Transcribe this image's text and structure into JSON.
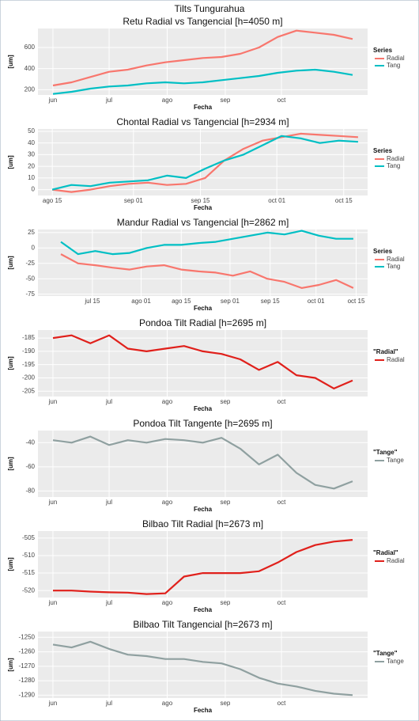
{
  "title": "Tilts Tungurahua",
  "chart_data": [
    {
      "type": "line",
      "title": "Retu Radial vs Tangencial [h=4050 m]",
      "xlabel": "Fecha",
      "ylabel": "[um]",
      "legend_title": "Series",
      "x": [
        0,
        10,
        20,
        30,
        40,
        50,
        60,
        70,
        80,
        90,
        100,
        110,
        120,
        130,
        140,
        150,
        160
      ],
      "xlim": [
        -8,
        168
      ],
      "xticks": [
        {
          "value": 0,
          "label": "jun"
        },
        {
          "value": 30,
          "label": "jul"
        },
        {
          "value": 61,
          "label": "ago"
        },
        {
          "value": 92,
          "label": "sep"
        },
        {
          "value": 122,
          "label": "oct"
        }
      ],
      "ylim": [
        150,
        780
      ],
      "yticks": [
        200,
        400,
        600
      ],
      "grid": true,
      "series": [
        {
          "name": "Radial",
          "color": "#f8766d",
          "values": [
            240,
            270,
            320,
            370,
            390,
            430,
            460,
            480,
            500,
            510,
            540,
            600,
            700,
            760,
            740,
            720,
            680
          ]
        },
        {
          "name": "Tang",
          "color": "#00bfc4",
          "values": [
            160,
            180,
            210,
            230,
            240,
            260,
            270,
            260,
            270,
            290,
            310,
            330,
            360,
            380,
            390,
            370,
            340
          ]
        }
      ]
    },
    {
      "type": "line",
      "title": "Chontal Radial vs Tangencial [h=2934 m]",
      "xlabel": "Fecha",
      "ylabel": "[um]",
      "legend_title": "Series",
      "x": [
        0,
        4,
        8,
        12,
        16,
        20,
        24,
        28,
        32,
        36,
        40,
        44,
        48,
        52,
        56,
        60,
        64
      ],
      "xlim": [
        -3,
        66
      ],
      "xticks": [
        {
          "value": 0,
          "label": "ago 15"
        },
        {
          "value": 17,
          "label": "sep 01"
        },
        {
          "value": 31,
          "label": "sep 15"
        },
        {
          "value": 47,
          "label": "oct 01"
        },
        {
          "value": 61,
          "label": "oct 15"
        }
      ],
      "ylim": [
        -5,
        52
      ],
      "yticks": [
        0,
        10,
        20,
        30,
        40,
        50
      ],
      "grid": true,
      "series": [
        {
          "name": "Radial",
          "color": "#f8766d",
          "values": [
            0,
            -2,
            0,
            3,
            5,
            6,
            4,
            5,
            10,
            25,
            35,
            42,
            45,
            48,
            47,
            46,
            45
          ]
        },
        {
          "name": "Tang",
          "color": "#00bfc4",
          "values": [
            0,
            4,
            3,
            6,
            7,
            8,
            12,
            10,
            18,
            25,
            30,
            38,
            46,
            44,
            40,
            42,
            41
          ]
        }
      ]
    },
    {
      "type": "line",
      "title": "Mandur Radial vs Tangencial [h=2862 m]",
      "xlabel": "Fecha",
      "ylabel": "[um]",
      "legend_title": "Series",
      "x": [
        3,
        9,
        15,
        21,
        27,
        33,
        39,
        45,
        51,
        57,
        63,
        69,
        75,
        81,
        87,
        93,
        99,
        105
      ],
      "xlim": [
        -5,
        110
      ],
      "xticks": [
        {
          "value": 14,
          "label": "jul 15"
        },
        {
          "value": 31,
          "label": "ago 01"
        },
        {
          "value": 45,
          "label": "ago 15"
        },
        {
          "value": 62,
          "label": "sep 01"
        },
        {
          "value": 76,
          "label": "sep 15"
        },
        {
          "value": 92,
          "label": "oct 01"
        },
        {
          "value": 106,
          "label": "oct 15"
        }
      ],
      "ylim": [
        -78,
        30
      ],
      "yticks": [
        25,
        0,
        -25,
        -50,
        -75
      ],
      "grid": true,
      "series": [
        {
          "name": "Radial",
          "color": "#f8766d",
          "values": [
            -10,
            -25,
            -28,
            -32,
            -35,
            -30,
            -28,
            -35,
            -38,
            -40,
            -45,
            -38,
            -50,
            -55,
            -65,
            -60,
            -52,
            -65
          ]
        },
        {
          "name": "Tang",
          "color": "#00bfc4",
          "values": [
            10,
            -10,
            -5,
            -10,
            -8,
            0,
            5,
            5,
            8,
            10,
            15,
            20,
            25,
            22,
            28,
            20,
            15,
            15
          ]
        }
      ]
    },
    {
      "type": "line",
      "title": "Pondoa Tilt Radial [h=2695 m]",
      "xlabel": "Fecha",
      "ylabel": "[um]",
      "legend_title": "\"Radial\"",
      "x": [
        0,
        10,
        20,
        30,
        40,
        50,
        60,
        70,
        80,
        90,
        100,
        110,
        120,
        130,
        140,
        150,
        160
      ],
      "xlim": [
        -8,
        168
      ],
      "xticks": [
        {
          "value": 0,
          "label": "jun"
        },
        {
          "value": 30,
          "label": "jul"
        },
        {
          "value": 61,
          "label": "ago"
        },
        {
          "value": 92,
          "label": "sep"
        },
        {
          "value": 122,
          "label": "oct"
        }
      ],
      "ylim": [
        -207,
        -182
      ],
      "yticks": [
        -185,
        -190,
        -195,
        -200,
        -205
      ],
      "grid": true,
      "series": [
        {
          "name": "Radial",
          "color": "#e0201b",
          "values": [
            -185,
            -184,
            -187,
            -184,
            -189,
            -190,
            -189,
            -188,
            -190,
            -191,
            -193,
            -197,
            -194,
            -199,
            -200,
            -204,
            -201
          ]
        }
      ]
    },
    {
      "type": "line",
      "title": "Pondoa Tilt Tangente [h=2695 m]",
      "xlabel": "Fecha",
      "ylabel": "[um]",
      "legend_title": "\"Tange\"",
      "x": [
        0,
        10,
        20,
        30,
        40,
        50,
        60,
        70,
        80,
        90,
        100,
        110,
        120,
        130,
        140,
        150,
        160
      ],
      "xlim": [
        -8,
        168
      ],
      "xticks": [
        {
          "value": 0,
          "label": "jun"
        },
        {
          "value": 30,
          "label": "jul"
        },
        {
          "value": 61,
          "label": "ago"
        },
        {
          "value": 92,
          "label": "sep"
        },
        {
          "value": 122,
          "label": "oct"
        }
      ],
      "ylim": [
        -85,
        -30
      ],
      "yticks": [
        -40,
        -60,
        -80
      ],
      "grid": true,
      "series": [
        {
          "name": "Tange",
          "color": "#8fa0a0",
          "values": [
            -38,
            -40,
            -35,
            -42,
            -38,
            -40,
            -37,
            -38,
            -40,
            -36,
            -45,
            -58,
            -50,
            -65,
            -75,
            -78,
            -72
          ]
        }
      ]
    },
    {
      "type": "line",
      "title": "Bilbao Tilt Radial [h=2673 m]",
      "xlabel": "Fecha",
      "ylabel": "[um]",
      "legend_title": "\"Radial\"",
      "x": [
        0,
        10,
        20,
        30,
        40,
        50,
        60,
        70,
        80,
        90,
        100,
        110,
        120,
        130,
        140,
        150,
        160
      ],
      "xlim": [
        -8,
        168
      ],
      "xticks": [
        {
          "value": 0,
          "label": "jun"
        },
        {
          "value": 30,
          "label": "jul"
        },
        {
          "value": 61,
          "label": "ago"
        },
        {
          "value": 92,
          "label": "sep"
        },
        {
          "value": 122,
          "label": "oct"
        }
      ],
      "ylim": [
        -522,
        -503
      ],
      "yticks": [
        -505,
        -510,
        -515,
        -520
      ],
      "grid": true,
      "series": [
        {
          "name": "Radial",
          "color": "#e0201b",
          "values": [
            -520,
            -520,
            -520.3,
            -520.5,
            -520.6,
            -521,
            -520.8,
            -516,
            -515,
            -515,
            -515,
            -514.5,
            -512,
            -509,
            -507,
            -506,
            -505.5
          ]
        }
      ]
    },
    {
      "type": "line",
      "title": "Bilbao Tilt Tangencial [h=2673 m]",
      "xlabel": "Fecha",
      "ylabel": "[um]",
      "legend_title": "\"Tange\"",
      "x": [
        0,
        10,
        20,
        30,
        40,
        50,
        60,
        70,
        80,
        90,
        100,
        110,
        120,
        130,
        140,
        150,
        160
      ],
      "xlim": [
        -8,
        168
      ],
      "xticks": [
        {
          "value": 0,
          "label": "jun"
        },
        {
          "value": 30,
          "label": "jul"
        },
        {
          "value": 61,
          "label": "ago"
        },
        {
          "value": 92,
          "label": "sep"
        },
        {
          "value": 122,
          "label": "oct"
        }
      ],
      "ylim": [
        -1292,
        -1246
      ],
      "yticks": [
        -1250,
        -1260,
        -1270,
        -1280,
        -1290
      ],
      "grid": true,
      "series": [
        {
          "name": "Tange",
          "color": "#8fa0a0",
          "values": [
            -1255,
            -1257,
            -1253,
            -1258,
            -1262,
            -1263,
            -1265,
            -1265,
            -1267,
            -1268,
            -1272,
            -1278,
            -1282,
            -1284,
            -1287,
            -1289,
            -1290
          ]
        }
      ]
    }
  ]
}
